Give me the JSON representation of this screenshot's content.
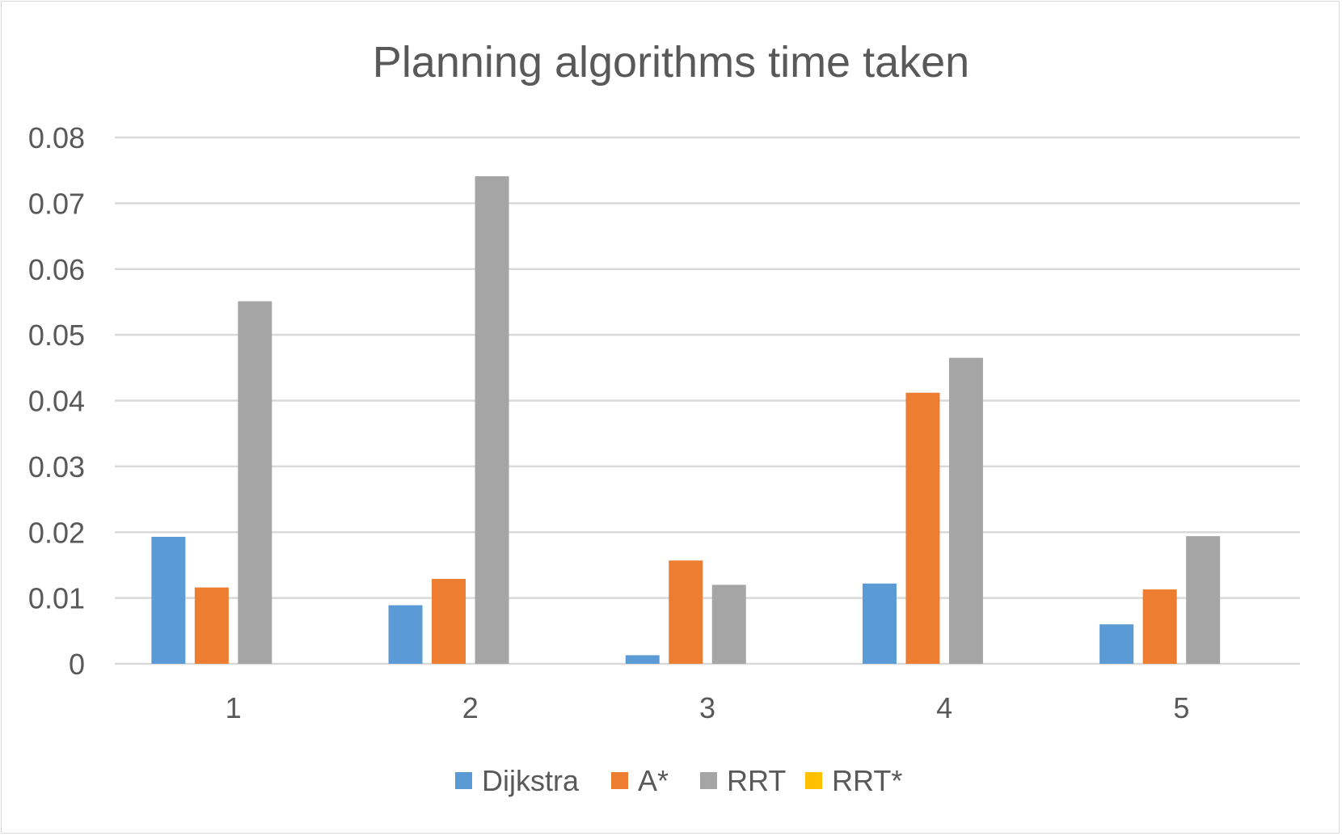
{
  "chart_data": {
    "type": "bar",
    "title": "Planning algorithms time taken",
    "xlabel": "",
    "ylabel": "",
    "categories": [
      "1",
      "2",
      "3",
      "4",
      "5"
    ],
    "ylim": [
      0,
      0.08
    ],
    "yticks": [
      0,
      0.01,
      0.02,
      0.03,
      0.04,
      0.05,
      0.06,
      0.07,
      0.08
    ],
    "ytick_labels": [
      "0",
      "0.01",
      "0.02",
      "0.03",
      "0.04",
      "0.05",
      "0.06",
      "0.07",
      "0.08"
    ],
    "grid": true,
    "legend_position": "bottom",
    "series": [
      {
        "name": "Dijkstra",
        "color": "#5b9bd5",
        "values": [
          0.0193,
          0.0089,
          0.0013,
          0.0122,
          0.006
        ]
      },
      {
        "name": "A*",
        "color": "#ed7d31",
        "values": [
          0.0116,
          0.0129,
          0.0157,
          0.0412,
          0.0113
        ]
      },
      {
        "name": "RRT",
        "color": "#a5a5a5",
        "values": [
          0.0551,
          0.0741,
          0.012,
          0.0465,
          0.0194
        ]
      },
      {
        "name": "RRT*",
        "color": "#ffc000",
        "values": [
          0,
          0,
          0,
          0,
          0
        ]
      }
    ]
  }
}
